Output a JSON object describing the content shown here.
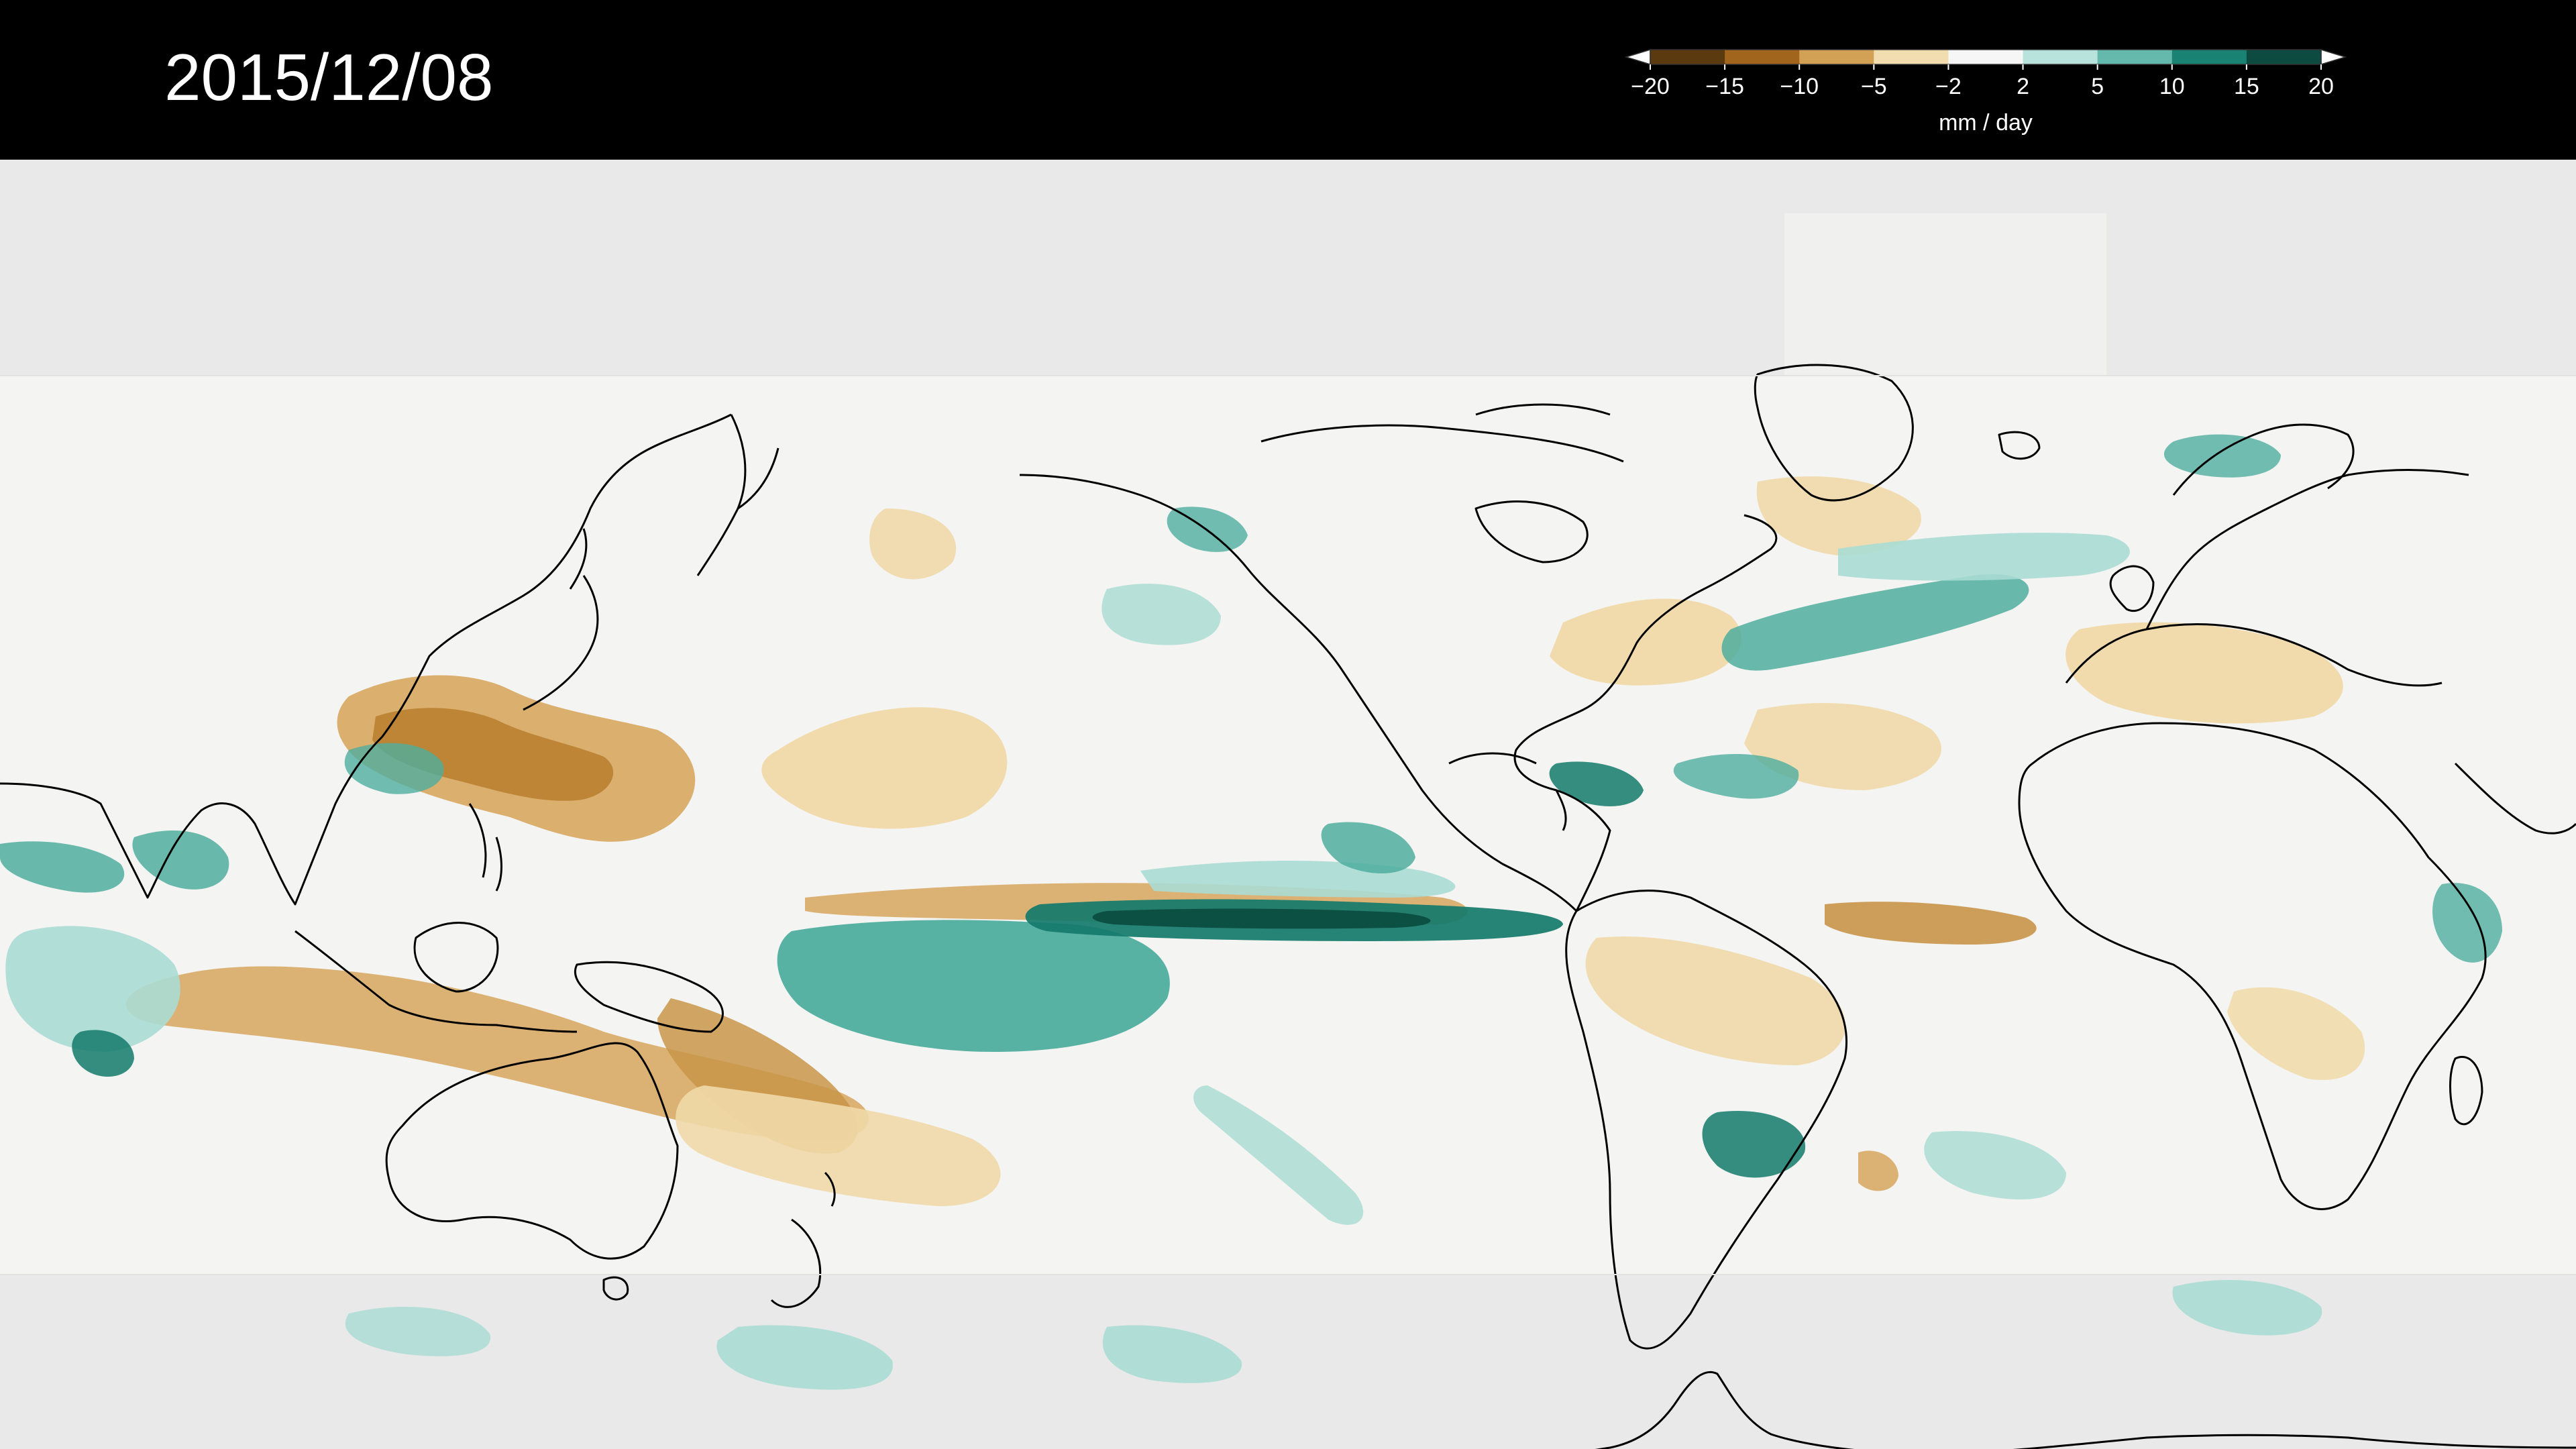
{
  "date_label": "2015/12/08",
  "legend": {
    "unit_label": "mm / day",
    "tick_labels": [
      "−20",
      "−15",
      "−10",
      "−5",
      "−2",
      "2",
      "5",
      "10",
      "15",
      "20"
    ],
    "ticks": [
      -20,
      -15,
      -10,
      -5,
      -2,
      2,
      5,
      10,
      15,
      20
    ],
    "colors": [
      "#5c3a10",
      "#a2651d",
      "#d2a155",
      "#f2ddb0",
      "#f6f6f6",
      "#b8e2dc",
      "#64b9ac",
      "#1a8273",
      "#0d4a3f"
    ],
    "extend_both": true
  },
  "colors": {
    "background": "#000000",
    "ocean_land_base": "#f4f4f2",
    "polar_mask": "#e9e9e9",
    "coastline": "#000000",
    "dry_light": "#f0d9a8",
    "dry_mid": "#d9ab66",
    "dry_strong": "#b9812f",
    "wet_light": "#aadcd4",
    "wet_mid": "#4fae9f",
    "wet_strong": "#137a6b",
    "wet_extreme": "#0a4a3f"
  },
  "map": {
    "projection": "equirectangular",
    "center_longitude": "pacific",
    "data_lat_range": [
      -50,
      50
    ],
    "field": "precipitation anomaly"
  }
}
